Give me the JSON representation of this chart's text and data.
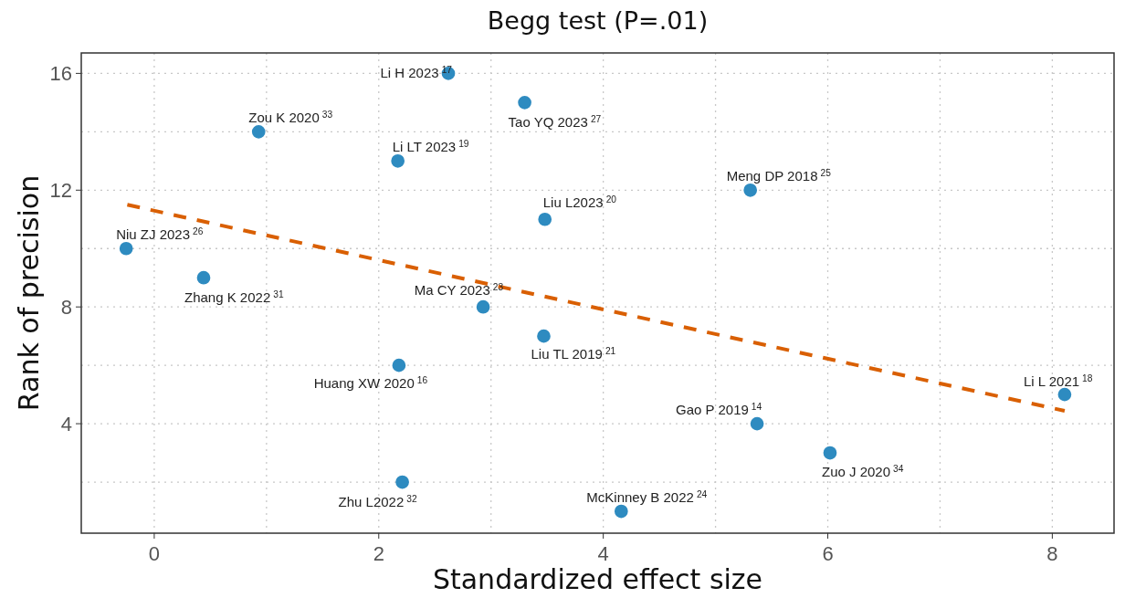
{
  "chart_data": {
    "type": "scatter",
    "title": "Begg test (P=.01)",
    "xlabel": "Standardized effect size",
    "ylabel": "Rank of precision",
    "xlim": [
      -0.65,
      8.55
    ],
    "ylim": [
      0.25,
      16.7
    ],
    "xticks": [
      0,
      2,
      4,
      6,
      8
    ],
    "yticks": [
      4,
      8,
      12,
      16
    ],
    "grid": true,
    "marker": "circle",
    "series": [
      {
        "color": "#2e8bc0",
        "x": [
          -0.25,
          0.44,
          0.93,
          2.17,
          2.18,
          2.21,
          2.62,
          2.93,
          3.3,
          3.48,
          3.47,
          4.16,
          5.31,
          5.37,
          6.02,
          8.11
        ],
        "values": [
          10,
          9,
          14,
          13,
          6,
          2,
          16,
          8,
          15,
          11,
          7,
          1,
          12,
          4,
          3,
          5
        ]
      },
      {
        "type": "line",
        "color": "#d95f02",
        "line_style": "dashed",
        "marker": "none",
        "x": [
          -0.24,
          8.11
        ],
        "values": [
          11.5,
          4.44
        ]
      }
    ],
    "annotations": [
      {
        "text": "Niu ZJ 2023$^{26}$",
        "x": -0.25,
        "y": 10
      },
      {
        "text": "Zhang K 2022$^{31}$",
        "x": 0.44,
        "y": 9
      },
      {
        "text": "Zou K 2020$^{33}$",
        "x": 0.93,
        "y": 14
      },
      {
        "text": "Li LT 2023$^{19}$",
        "x": 2.17,
        "y": 13
      },
      {
        "text": "Huang XW 2020$^{16}$",
        "x": 2.18,
        "y": 6
      },
      {
        "text": "Zhu L2022$^{32}$",
        "x": 2.21,
        "y": 2
      },
      {
        "text": "Li H 2023$^{17}$",
        "x": 2.62,
        "y": 16
      },
      {
        "text": "Ma CY 2023$^{23}$",
        "x": 2.93,
        "y": 8
      },
      {
        "text": "Tao YQ 2023$^{27}$",
        "x": 3.3,
        "y": 15
      },
      {
        "text": "Liu L2023$^{20}$",
        "x": 3.48,
        "y": 11
      },
      {
        "text": "Liu TL 2019$^{21}$",
        "x": 3.47,
        "y": 7
      },
      {
        "text": "McKinney B 2022$^{24}$",
        "x": 4.16,
        "y": 1
      },
      {
        "text": "Meng DP 2018$^{25}$",
        "x": 5.31,
        "y": 12
      },
      {
        "text": "Gao P 2019$^{14}$",
        "x": 5.37,
        "y": 4
      },
      {
        "text": "Zuo J 2020$^{34}$",
        "x": 6.02,
        "y": 3
      },
      {
        "text": "Li L 2021$^{18}$",
        "x": 8.11,
        "y": 5
      }
    ]
  }
}
